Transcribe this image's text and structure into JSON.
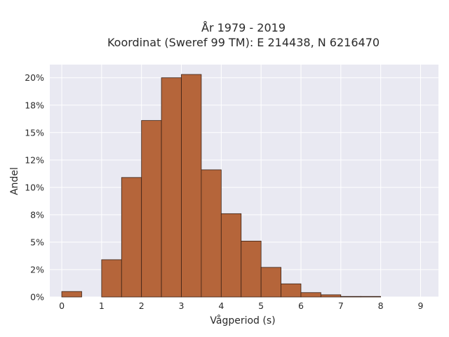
{
  "chart_data": {
    "type": "bar",
    "title_line1": "År 1979 - 2019",
    "title_line2": "Koordinat (Sweref 99 TM): E 214438, N 6216470",
    "xlabel": "Vågperiod (s)",
    "ylabel": "Andel",
    "xlim": [
      -0.3,
      9.45
    ],
    "ylim": [
      0,
      21.2
    ],
    "xticks": [
      0,
      1,
      2,
      3,
      4,
      5,
      6,
      7,
      8,
      9
    ],
    "xtick_labels": [
      "0",
      "1",
      "2",
      "3",
      "4",
      "5",
      "6",
      "7",
      "8",
      "9"
    ],
    "yticks": [
      0,
      2.5,
      5,
      7.5,
      10,
      12.5,
      15,
      17.5,
      20
    ],
    "ytick_labels": [
      "0%",
      "2%",
      "5%",
      "8%",
      "10%",
      "12%",
      "15%",
      "18%",
      "20%"
    ],
    "bin_width": 0.5,
    "bins": [
      {
        "x0": 0.0,
        "value": 0.5
      },
      {
        "x0": 0.5,
        "value": 0.0
      },
      {
        "x0": 1.0,
        "value": 3.4
      },
      {
        "x0": 1.5,
        "value": 10.9
      },
      {
        "x0": 2.0,
        "value": 16.1
      },
      {
        "x0": 2.5,
        "value": 20.0
      },
      {
        "x0": 3.0,
        "value": 20.3
      },
      {
        "x0": 3.5,
        "value": 11.6
      },
      {
        "x0": 4.0,
        "value": 7.6
      },
      {
        "x0": 4.5,
        "value": 5.1
      },
      {
        "x0": 5.0,
        "value": 2.7
      },
      {
        "x0": 5.5,
        "value": 1.2
      },
      {
        "x0": 6.0,
        "value": 0.4
      },
      {
        "x0": 6.5,
        "value": 0.2
      },
      {
        "x0": 7.0,
        "value": 0.05
      },
      {
        "x0": 7.5,
        "value": 0.05
      }
    ],
    "grid": true,
    "colors": {
      "bar_fill": "#b5653a",
      "bar_stroke": "#3a2216",
      "plot_bg": "#e9e9f2",
      "grid": "#ffffff"
    }
  }
}
